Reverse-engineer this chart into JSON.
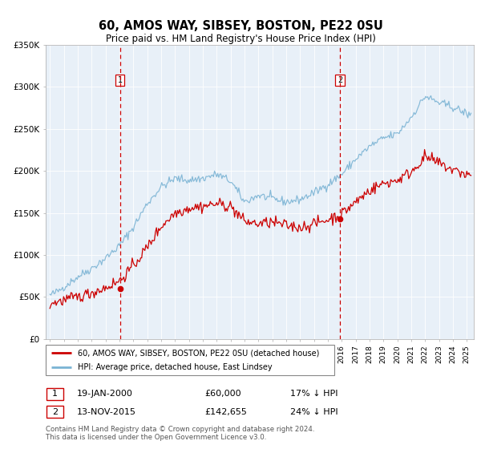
{
  "title": "60, AMOS WAY, SIBSEY, BOSTON, PE22 0SU",
  "subtitle": "Price paid vs. HM Land Registry's House Price Index (HPI)",
  "legend_line1": "60, AMOS WAY, SIBSEY, BOSTON, PE22 0SU (detached house)",
  "legend_line2": "HPI: Average price, detached house, East Lindsey",
  "annotation1_label": "1",
  "annotation1_date": "19-JAN-2000",
  "annotation1_price": "£60,000",
  "annotation1_hpi": "17% ↓ HPI",
  "annotation1_year": 2000.05,
  "annotation1_value": 60000,
  "annotation2_label": "2",
  "annotation2_date": "13-NOV-2015",
  "annotation2_price": "£142,655",
  "annotation2_hpi": "24% ↓ HPI",
  "annotation2_year": 2015.87,
  "annotation2_value": 142655,
  "hpi_color": "#7ab3d4",
  "price_color": "#cc0000",
  "plot_bg": "#e8f0f8",
  "grid_color": "#ffffff",
  "vline_color": "#cc0000",
  "footer": "Contains HM Land Registry data © Crown copyright and database right 2024.\nThis data is licensed under the Open Government Licence v3.0.",
  "ylim": [
    0,
    350000
  ],
  "xlim_start": 1994.7,
  "xlim_end": 2025.5,
  "yticks": [
    0,
    50000,
    100000,
    150000,
    200000,
    250000,
    300000,
    350000
  ],
  "ytick_labels": [
    "£0",
    "£50K",
    "£100K",
    "£150K",
    "£200K",
    "£250K",
    "£300K",
    "£350K"
  ]
}
